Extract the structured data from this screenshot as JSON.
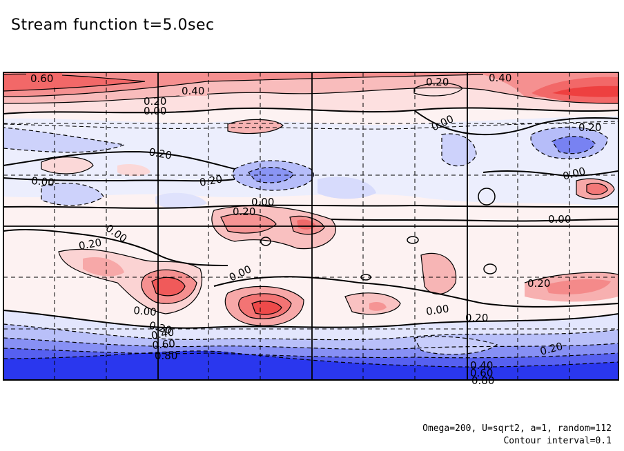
{
  "chart_data": {
    "type": "heatmap",
    "title": "Stream function t=5.0sec",
    "note_line1": "Omega=200, U=sqrt2, a=1, random=112",
    "note_line2": "Contour interval=0.1",
    "grid": "dashed",
    "colors": {
      "positive_strong": "#f24a4a",
      "positive_mid": "#f7a0a0",
      "positive_weak": "#fde4e4",
      "negative_weak": "#e6e8fd",
      "negative_mid": "#a8b0f8",
      "negative_strong": "#2233f0"
    },
    "contour_labels": [
      "0.60",
      "0.40",
      "0.20",
      "0.00",
      "0.20",
      "0.40",
      "0.00",
      "0.20",
      "0.20",
      "0.00",
      "0.20",
      "0.00",
      "0.00",
      "0.20",
      "0.00",
      "0.00",
      "0.20",
      "0.00",
      "0.20",
      "0.00",
      "0.20",
      "0.40",
      "0.60",
      "0.80",
      "0.00",
      "0.20",
      "0.20",
      "0.40",
      "0.60",
      "0.80"
    ]
  }
}
